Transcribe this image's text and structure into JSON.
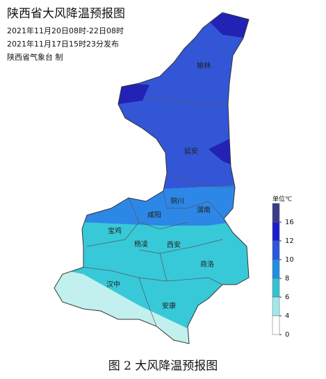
{
  "header": {
    "title": "陕西省大风降温预报图",
    "valid": "2021年11月20日08时-22日08时",
    "issued": "2021年11月17日15时23分发布",
    "issuer": "陕西省气象台 制"
  },
  "cities": [
    "榆林",
    "延安",
    "铜川",
    "渭南",
    "咸阳",
    "宝鸡",
    "杨凌",
    "西安",
    "商洛",
    "汉中",
    "安康"
  ],
  "legend": {
    "unit": "单位℃",
    "ticks": [
      16,
      12,
      10,
      8,
      6,
      4,
      0
    ],
    "colors": [
      "#3b3b8c",
      "#1c1cd0",
      "#2a57e0",
      "#1f8fe2",
      "#32c2d2",
      "#a2e8ea",
      "#ffffff"
    ]
  },
  "caption": "图 2 大风降温预报图"
}
